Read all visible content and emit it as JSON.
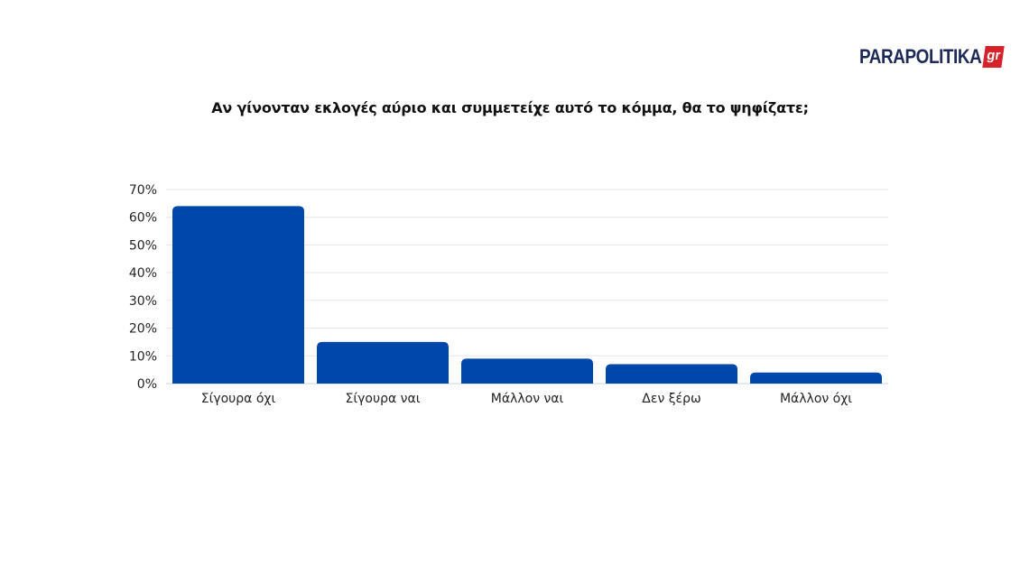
{
  "brand": {
    "name": "PARAPOLITIKA",
    "suffix": "gr",
    "name_color": "#1d2a57",
    "suffix_bg": "#d6232a"
  },
  "chart_data": {
    "type": "bar",
    "title": "Αν γίνονταν εκλογές αύριο και συμμετείχε αυτό το κόμμα, θα το ψηφίζατε;",
    "xlabel": "",
    "ylabel": "",
    "categories": [
      "Σίγουρα όχι",
      "Σίγουρα ναι",
      "Μάλλον ναι",
      "Δεν ξέρω",
      "Μάλλον όχι"
    ],
    "values": [
      64,
      15,
      9,
      7,
      4
    ],
    "ylim": [
      0,
      70
    ],
    "yticks": [
      0,
      10,
      20,
      30,
      40,
      50,
      60,
      70
    ],
    "ytick_labels": [
      "0%",
      "10%",
      "20%",
      "30%",
      "40%",
      "50%",
      "60%",
      "70%"
    ],
    "bar_color": "#0047ab",
    "grid": true,
    "legend": "none"
  }
}
